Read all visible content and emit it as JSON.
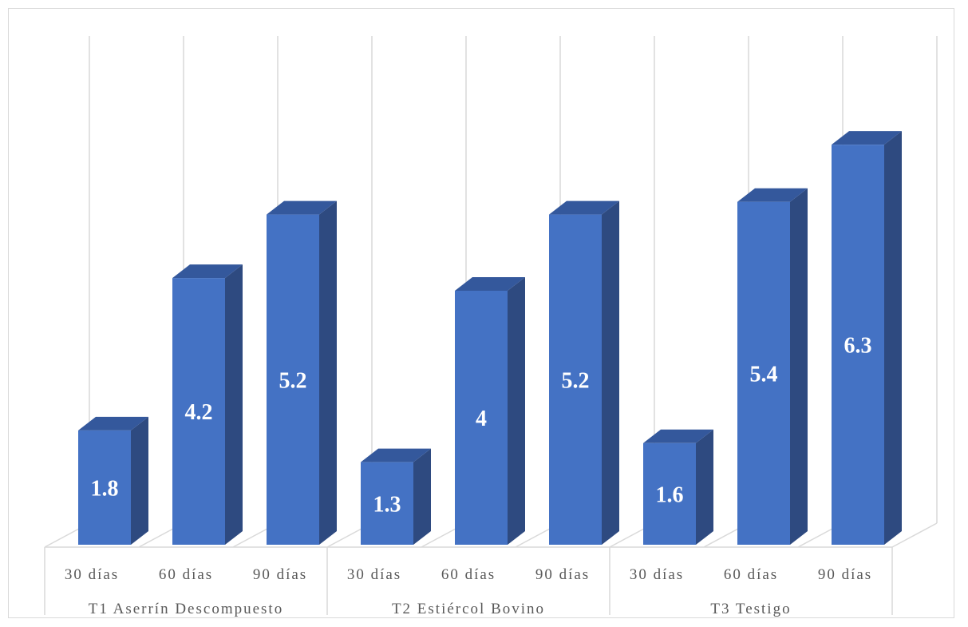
{
  "colors": {
    "bar_front": "#4472c4",
    "bar_side": "#2e4a80",
    "bar_top": "#34589c",
    "grid": "#d9d9d9",
    "label_text": "#595959"
  },
  "chart_data": {
    "type": "bar",
    "style": "3d-clustered-column",
    "groups": [
      {
        "name": "T1 Aserrín Descompuesto",
        "categories": [
          "30 días",
          "60 días",
          "90 días"
        ],
        "values": [
          1.8,
          4.2,
          5.2
        ]
      },
      {
        "name": "T2 Estiércol Bovino",
        "categories": [
          "30 días",
          "60 días",
          "90 días"
        ],
        "values": [
          1.3,
          4,
          5.2
        ]
      },
      {
        "name": "T3 Testigo",
        "categories": [
          "30 días",
          "60 días",
          "90 días"
        ],
        "values": [
          1.6,
          5.4,
          6.3
        ]
      }
    ],
    "ylim": [
      0,
      7
    ],
    "grid": "vertical",
    "legend": "none",
    "title": "",
    "xlabel": "",
    "ylabel": ""
  }
}
